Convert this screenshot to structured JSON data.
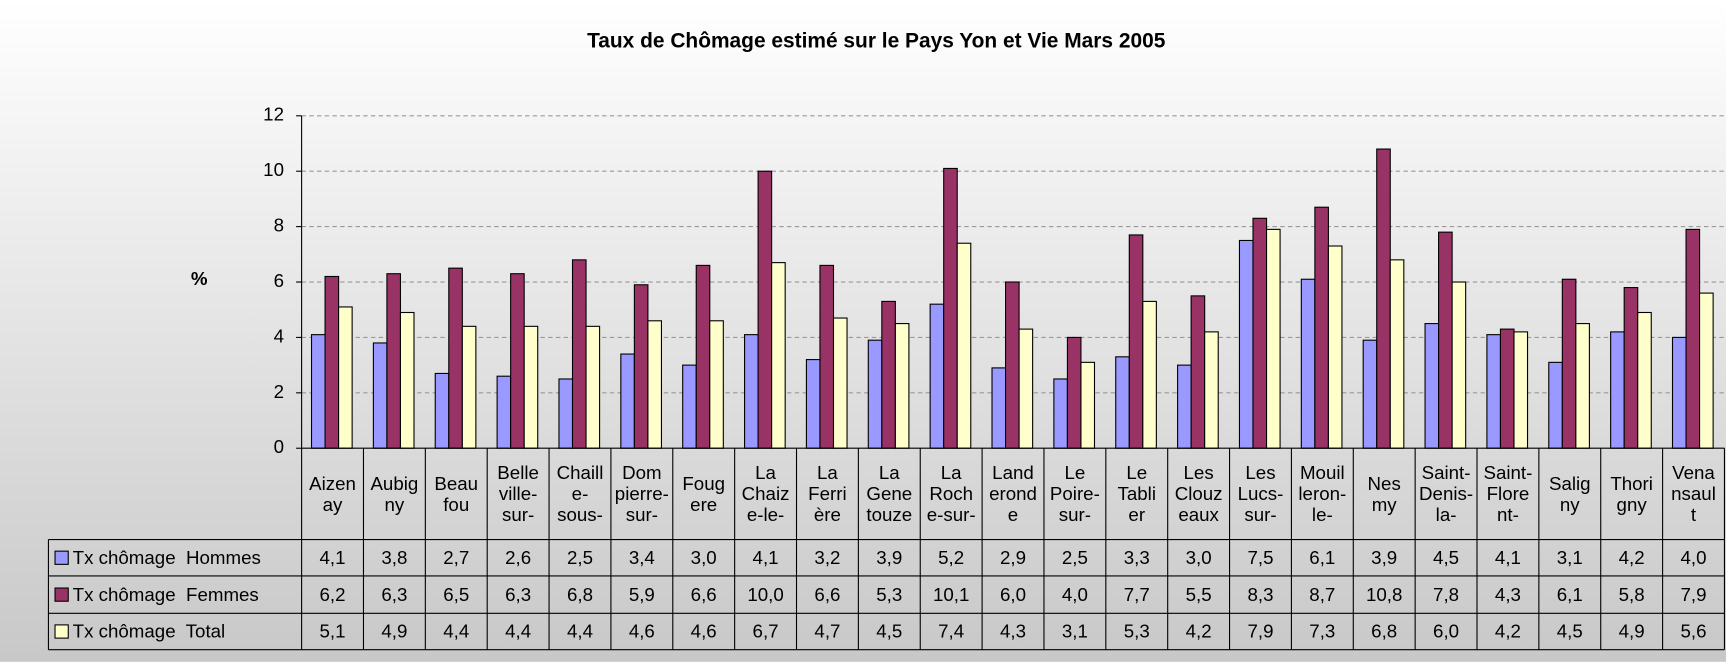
{
  "chart_data": {
    "type": "bar",
    "title": "Taux de Chômage estimé sur le Pays Yon et Vie Mars 2005",
    "y_label": "%",
    "categories": [
      "Aizen\nay",
      "Aubig\nny",
      "Beau\nfou",
      "Belle\nville-\nsur-",
      "Chaill\ne-\nsous-",
      "Dom\npierre-\nsur-",
      "Foug\nere",
      "La\nChaiz\ne-le-",
      "La\nFerri\nère",
      "La\nGene\ntouze",
      "La\nRoch\ne-sur-",
      "Land\nerond\ne",
      "Le\nPoire-\nsur-",
      "Le\nTabli\ner",
      "Les\nClouz\neaux",
      "Les\nLucs-\nsur-",
      "Mouil\nleron-\nle-",
      "Nes\nmy",
      "Saint-\nDenis-\nla-",
      "Saint-\nFlore\nnt-",
      "Salig\nny",
      "Thori\ngny",
      "Vena\nnsaul\nt"
    ],
    "series": [
      {
        "name": "Tx chômage  Hommes",
        "color": "#9999ff",
        "values": [
          4.1,
          3.8,
          2.7,
          2.6,
          2.5,
          3.4,
          3.0,
          4.1,
          3.2,
          3.9,
          5.2,
          2.9,
          2.5,
          3.3,
          3.0,
          7.5,
          6.1,
          3.9,
          4.5,
          4.1,
          3.1,
          4.2,
          4.0
        ],
        "value_labels": [
          "4,1",
          "3,8",
          "2,7",
          "2,6",
          "2,5",
          "3,4",
          "3,0",
          "4,1",
          "3,2",
          "3,9",
          "5,2",
          "2,9",
          "2,5",
          "3,3",
          "3,0",
          "7,5",
          "6,1",
          "3,9",
          "4,5",
          "4,1",
          "3,1",
          "4,2",
          "4,0"
        ]
      },
      {
        "name": "Tx chômage  Femmes",
        "color": "#993366",
        "values": [
          6.2,
          6.3,
          6.5,
          6.3,
          6.8,
          5.9,
          6.6,
          10.0,
          6.6,
          5.3,
          10.1,
          6.0,
          4.0,
          7.7,
          5.5,
          8.3,
          8.7,
          10.8,
          7.8,
          4.3,
          6.1,
          5.8,
          7.9
        ],
        "value_labels": [
          "6,2",
          "6,3",
          "6,5",
          "6,3",
          "6,8",
          "5,9",
          "6,6",
          "10,0",
          "6,6",
          "5,3",
          "10,1",
          "6,0",
          "4,0",
          "7,7",
          "5,5",
          "8,3",
          "8,7",
          "10,8",
          "7,8",
          "4,3",
          "6,1",
          "5,8",
          "7,9"
        ]
      },
      {
        "name": "Tx chômage  Total",
        "color": "#ffffcc",
        "values": [
          5.1,
          4.9,
          4.4,
          4.4,
          4.4,
          4.6,
          4.6,
          6.7,
          4.7,
          4.5,
          7.4,
          4.3,
          3.1,
          5.3,
          4.2,
          7.9,
          7.3,
          6.8,
          6.0,
          4.2,
          4.5,
          4.9,
          5.6
        ],
        "value_labels": [
          "5,1",
          "4,9",
          "4,4",
          "4,4",
          "4,4",
          "4,6",
          "4,6",
          "6,7",
          "4,7",
          "4,5",
          "7,4",
          "4,3",
          "3,1",
          "5,3",
          "4,2",
          "7,9",
          "7,3",
          "6,8",
          "6,0",
          "4,2",
          "4,5",
          "4,9",
          "5,6"
        ]
      }
    ],
    "ylim": [
      0,
      12
    ],
    "yticks": [
      0,
      2,
      4,
      6,
      8,
      10,
      12
    ],
    "grid": true
  }
}
